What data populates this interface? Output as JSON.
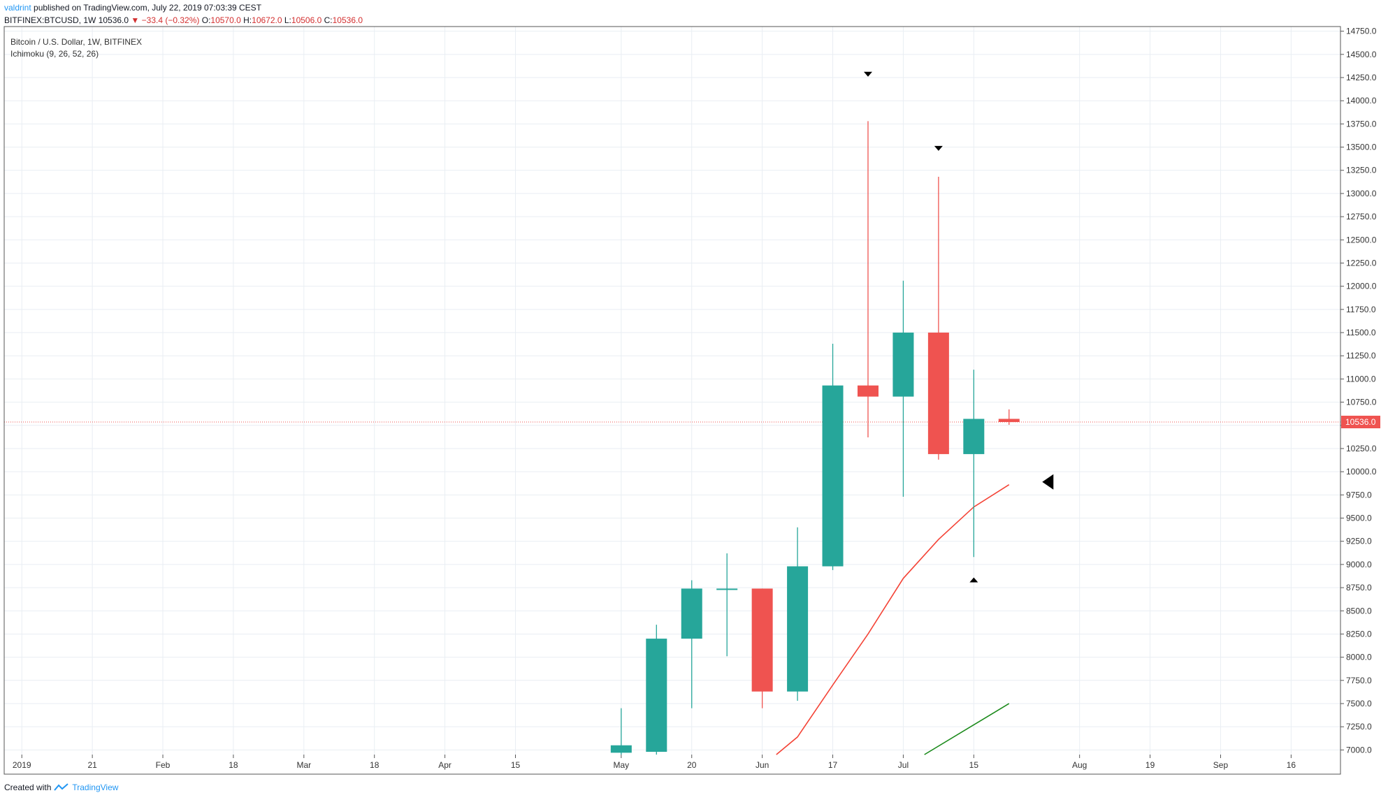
{
  "header": {
    "publisher": "valdrint",
    "published_text": "published on TradingView.com, July 22, 2019 07:03:39 CEST",
    "symbol": "BITFINEX:BTCUSD, 1W",
    "last": "10536.0",
    "change": "−33.4 (−0.32%)",
    "o_label": "O:",
    "o_value": "10570.0",
    "h_label": "H:",
    "h_value": "10672.0",
    "l_label": "L:",
    "l_value": "10506.0",
    "c_label": "C:",
    "c_value": "10536.0"
  },
  "legend": {
    "title": "Bitcoin / U.S. Dollar, 1W, BITFINEX",
    "indicator": "Ichimoku (9, 26, 52, 26)"
  },
  "footer": {
    "created_with": "Created with",
    "brand": "TradingView"
  },
  "colors": {
    "up": "#26a69a",
    "down": "#ef5350",
    "conversion_line": "#f44336",
    "lagging_line": "#1b8a1b",
    "grid": "#e9eef3",
    "price_line": "#ef5350"
  },
  "chart_data": {
    "type": "candlestick",
    "title": "Bitcoin / U.S. Dollar, 1W, BITFINEX",
    "y_axis": {
      "ylim": [
        6950,
        14800
      ],
      "ticks": [
        7000,
        7250,
        7500,
        7750,
        8000,
        8250,
        8500,
        8750,
        9000,
        9250,
        9500,
        9750,
        10000,
        10250,
        10500,
        10750,
        11000,
        11250,
        11500,
        11750,
        12000,
        12250,
        12500,
        12750,
        13000,
        13250,
        13500,
        13750,
        14000,
        14250,
        14500,
        14750
      ],
      "tick_labels": [
        "7000.0",
        "7250.0",
        "7500.0",
        "7750.0",
        "8000.0",
        "8250.0",
        "8500.0",
        "8750.0",
        "9000.0",
        "9250.0",
        "9500.0",
        "9750.0",
        "10000.0",
        "10250.0",
        "10500.0",
        "10750.0",
        "11000.0",
        "11250.0",
        "11500.0",
        "11750.0",
        "12000.0",
        "12250.0",
        "12500.0",
        "12750.0",
        "13000.0",
        "13250.0",
        "13500.0",
        "13750.0",
        "14000.0",
        "14250.0",
        "14500.0",
        "14750.0"
      ]
    },
    "x_axis": {
      "week_range": [
        -0.5,
        37.4
      ],
      "tick_weeks": [
        0,
        2,
        4,
        6,
        8,
        10,
        12,
        14,
        17,
        19,
        21,
        23,
        25,
        27,
        30,
        32,
        34,
        36
      ],
      "tick_labels": [
        "2019",
        "21",
        "Feb",
        "18",
        "Mar",
        "18",
        "Apr",
        "15",
        "May",
        "20",
        "Jun",
        "17",
        "Jul",
        "15",
        "Aug",
        "19",
        "Sep",
        "16"
      ]
    },
    "candles": [
      {
        "week": 17,
        "open": 6970,
        "high": 7450,
        "low": 6900,
        "close": 7050
      },
      {
        "week": 18,
        "open": 6980,
        "high": 8350,
        "low": 6900,
        "close": 8200
      },
      {
        "week": 19,
        "open": 8200,
        "high": 8830,
        "low": 7450,
        "close": 8740
      },
      {
        "week": 20,
        "open": 8740,
        "high": 9120,
        "low": 8010,
        "close": 8740
      },
      {
        "week": 21,
        "open": 8740,
        "high": 8740,
        "low": 7450,
        "close": 7630
      },
      {
        "week": 22,
        "open": 7630,
        "high": 9400,
        "low": 7530,
        "close": 8980
      },
      {
        "week": 23,
        "open": 8980,
        "high": 11380,
        "low": 8940,
        "close": 10930
      },
      {
        "week": 24,
        "open": 10930,
        "high": 13780,
        "low": 10370,
        "close": 10810
      },
      {
        "week": 25,
        "open": 10810,
        "high": 12060,
        "low": 9730,
        "close": 11500
      },
      {
        "week": 26,
        "open": 11500,
        "high": 13180,
        "low": 10130,
        "close": 10190
      },
      {
        "week": 27,
        "open": 10190,
        "high": 11100,
        "low": 9080,
        "close": 10570
      },
      {
        "week": 28,
        "open": 10570,
        "high": 10672,
        "low": 10506,
        "close": 10536
      }
    ],
    "last_price": 10536,
    "last_price_label": "10536.0",
    "series": [
      {
        "type": "line",
        "points": [
          [
            21.4,
            6950
          ],
          [
            22,
            7140
          ],
          [
            23,
            7700
          ],
          [
            24,
            8250
          ],
          [
            25,
            8850
          ],
          [
            26,
            9270
          ],
          [
            27,
            9620
          ],
          [
            28,
            9860
          ]
        ]
      },
      {
        "type": "line",
        "points": [
          [
            25.6,
            6950
          ],
          [
            28,
            7500
          ]
        ]
      }
    ],
    "markers": [
      {
        "shape": "arrow-down",
        "week": 24,
        "price": 14290
      },
      {
        "shape": "arrow-down",
        "week": 26,
        "price": 13490
      },
      {
        "shape": "arrow-up",
        "week": 27,
        "price": 8830
      },
      {
        "shape": "arrow-left",
        "week": 29.1,
        "price": 9890
      }
    ],
    "grid": true
  }
}
